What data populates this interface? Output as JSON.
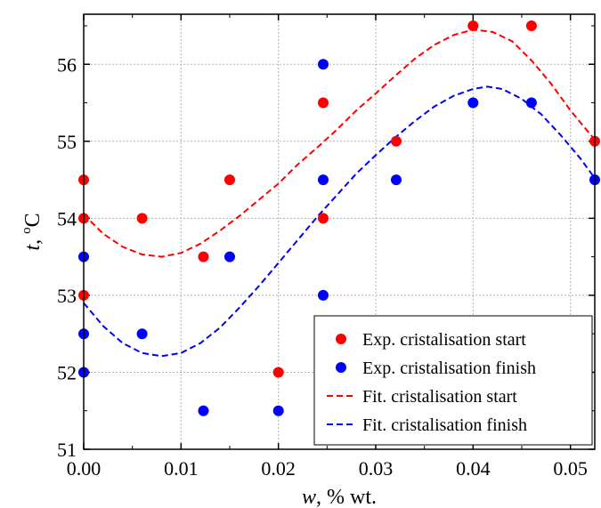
{
  "chart_data": {
    "type": "scatter",
    "xlabel": {
      "var": "w",
      "rest": ", % wt."
    },
    "ylabel": {
      "var": "t",
      "sep": ", ",
      "sup": "o",
      "unit": "C"
    },
    "xlim": [
      0.0,
      0.0525
    ],
    "ylim": [
      51,
      56.65
    ],
    "x_ticks": [
      "0.00",
      "0.01",
      "0.02",
      "0.03",
      "0.04",
      "0.05"
    ],
    "y_ticks": [
      "51",
      "52",
      "53",
      "54",
      "55",
      "56"
    ],
    "grid": true,
    "legend_position": "bottom-right",
    "series": [
      {
        "name": "Exp. cristalisation start",
        "kind": "points",
        "color": "#ff0000",
        "points": [
          [
            0.0,
            54.5
          ],
          [
            0.0,
            54.0
          ],
          [
            0.0,
            53.0
          ],
          [
            0.006,
            54.0
          ],
          [
            0.0123,
            53.5
          ],
          [
            0.015,
            54.5
          ],
          [
            0.02,
            52.0
          ],
          [
            0.0246,
            55.5
          ],
          [
            0.0246,
            54.0
          ],
          [
            0.0321,
            55.0
          ],
          [
            0.04,
            56.5
          ],
          [
            0.046,
            56.5
          ],
          [
            0.0525,
            55.0
          ]
        ]
      },
      {
        "name": "Exp. cristalisation finish",
        "kind": "points",
        "color": "#0000ff",
        "points": [
          [
            0.0,
            53.5
          ],
          [
            0.0,
            52.5
          ],
          [
            0.0,
            52.0
          ],
          [
            0.006,
            52.5
          ],
          [
            0.0123,
            51.5
          ],
          [
            0.015,
            53.5
          ],
          [
            0.02,
            51.5
          ],
          [
            0.0246,
            56.0
          ],
          [
            0.0246,
            54.5
          ],
          [
            0.0246,
            53.0
          ],
          [
            0.0321,
            54.5
          ],
          [
            0.04,
            55.5
          ],
          [
            0.046,
            55.5
          ],
          [
            0.0525,
            54.5
          ]
        ]
      },
      {
        "name": "Fit. cristalisation start",
        "kind": "dashed-line",
        "color": "#ff0000",
        "points": [
          [
            0.0,
            54.05
          ],
          [
            0.002,
            53.8
          ],
          [
            0.004,
            53.63
          ],
          [
            0.006,
            53.53
          ],
          [
            0.008,
            53.5
          ],
          [
            0.01,
            53.55
          ],
          [
            0.012,
            53.67
          ],
          [
            0.014,
            53.84
          ],
          [
            0.016,
            54.03
          ],
          [
            0.018,
            54.24
          ],
          [
            0.02,
            54.45
          ],
          [
            0.022,
            54.7
          ],
          [
            0.024,
            54.92
          ],
          [
            0.026,
            55.15
          ],
          [
            0.028,
            55.4
          ],
          [
            0.03,
            55.62
          ],
          [
            0.032,
            55.85
          ],
          [
            0.034,
            56.07
          ],
          [
            0.036,
            56.25
          ],
          [
            0.038,
            56.38
          ],
          [
            0.04,
            56.45
          ],
          [
            0.042,
            56.42
          ],
          [
            0.044,
            56.3
          ],
          [
            0.046,
            56.05
          ],
          [
            0.048,
            55.75
          ],
          [
            0.05,
            55.4
          ],
          [
            0.0525,
            55.02
          ]
        ]
      },
      {
        "name": "Fit. cristalisation finish",
        "kind": "dashed-line",
        "color": "#0000ff",
        "points": [
          [
            0.0,
            52.9
          ],
          [
            0.002,
            52.6
          ],
          [
            0.004,
            52.38
          ],
          [
            0.006,
            52.25
          ],
          [
            0.008,
            52.21
          ],
          [
            0.01,
            52.25
          ],
          [
            0.012,
            52.38
          ],
          [
            0.014,
            52.58
          ],
          [
            0.016,
            52.84
          ],
          [
            0.018,
            53.12
          ],
          [
            0.02,
            53.42
          ],
          [
            0.022,
            53.72
          ],
          [
            0.024,
            54.02
          ],
          [
            0.026,
            54.3
          ],
          [
            0.028,
            54.58
          ],
          [
            0.03,
            54.82
          ],
          [
            0.032,
            55.05
          ],
          [
            0.034,
            55.26
          ],
          [
            0.036,
            55.45
          ],
          [
            0.038,
            55.59
          ],
          [
            0.04,
            55.68
          ],
          [
            0.0415,
            55.71
          ],
          [
            0.043,
            55.68
          ],
          [
            0.045,
            55.55
          ],
          [
            0.047,
            55.35
          ],
          [
            0.049,
            55.08
          ],
          [
            0.051,
            54.78
          ],
          [
            0.0525,
            54.52
          ]
        ]
      }
    ]
  }
}
